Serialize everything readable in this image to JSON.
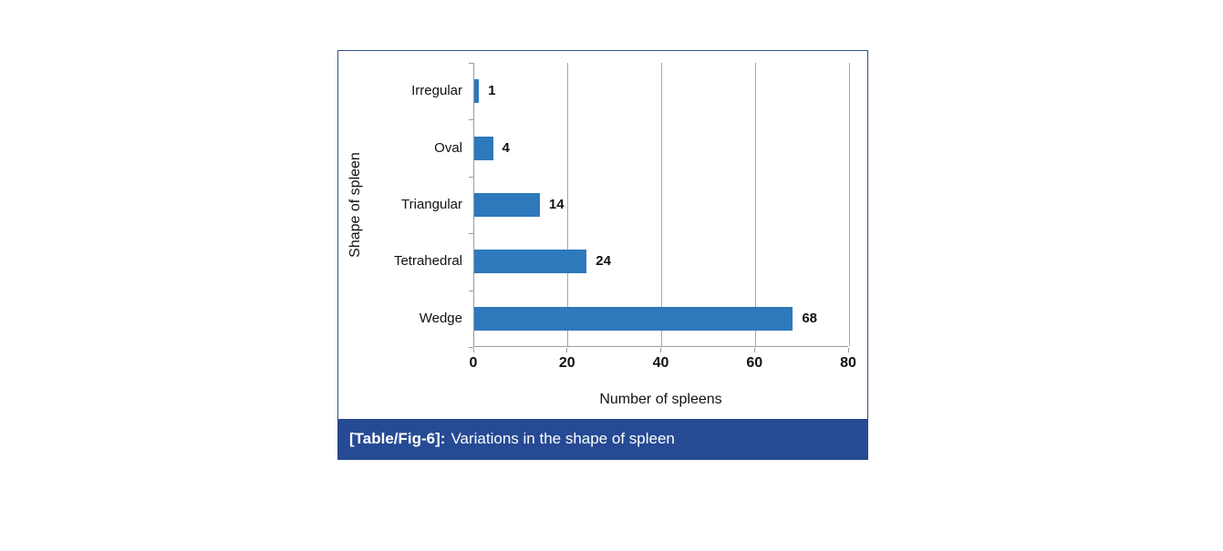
{
  "figure": {
    "caption_prefix": "[Table/Fig-6]:",
    "caption_text": "Variations in the shape of spleen",
    "caption_bg": "#264A93",
    "border_color": "#2D4E8F"
  },
  "chart_data": {
    "type": "bar",
    "orientation": "horizontal",
    "categories": [
      "Irregular",
      "Oval",
      "Triangular",
      "Tetrahedral",
      "Wedge"
    ],
    "values": [
      1,
      4,
      14,
      24,
      68
    ],
    "data_labels": [
      "1",
      "4",
      "14",
      "24",
      "68"
    ],
    "title": "",
    "xlabel": "Number of spleens",
    "ylabel": "Shape of spleen",
    "xlim": [
      0,
      80
    ],
    "xticks": [
      0,
      20,
      40,
      60,
      80
    ],
    "grid": "vertical",
    "legend": "none",
    "bar_color": "#2E78BC",
    "grid_color": "#A6A6A6",
    "axis_color": "#9B9B9B"
  }
}
